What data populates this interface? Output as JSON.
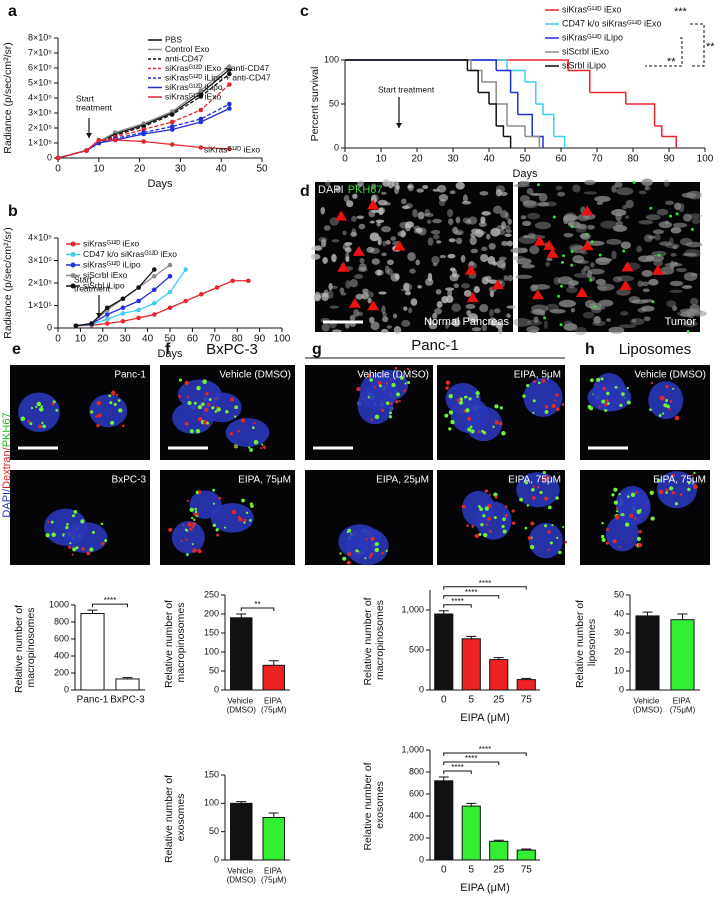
{
  "chart_data": [
    {
      "type": "line",
      "panel": "a",
      "ylabel": "Radiance (p/sec/cm²/sr)",
      "xlabel": "Days",
      "xlim": [
        0,
        50
      ],
      "xticks": [
        0,
        10,
        20,
        30,
        40,
        50
      ],
      "ylim": [
        0,
        800000
      ],
      "yticks": [
        0,
        {
          "value": 100000,
          "label": "1×10⁵"
        },
        {
          "value": 200000,
          "label": "2×10⁵"
        },
        {
          "value": 300000,
          "label": "3×10⁵"
        },
        {
          "value": 400000,
          "label": "4×10⁵"
        },
        {
          "value": 500000,
          "label": "5×10⁵"
        },
        {
          "value": 600000,
          "label": "6×10⁵"
        },
        {
          "value": 700000,
          "label": "7×10⁵"
        },
        {
          "value": 800000,
          "label": "8×10⁵"
        }
      ],
      "annotations": [
        "Start\ntreatment",
        "siKrasᴳ¹²ᴰ iExo"
      ],
      "x": [
        0,
        7,
        10,
        14,
        21,
        28,
        35,
        42
      ],
      "series": [
        {
          "name": "PBS",
          "color": "#111111",
          "dash": false,
          "values": [
            0,
            50000,
            110000,
            160000,
            220000,
            300000,
            430000,
            590000
          ]
        },
        {
          "name": "Control Exo",
          "color": "#8c8c8c",
          "dash": false,
          "values": [
            0,
            50000,
            110000,
            170000,
            230000,
            310000,
            450000,
            610000
          ]
        },
        {
          "name": "anti-CD47",
          "color": "#111111",
          "dash": true,
          "values": [
            0,
            50000,
            100000,
            150000,
            210000,
            290000,
            410000,
            560000
          ]
        },
        {
          "name": "siKrasᴳ¹²ᴰ iExo + anti-CD47",
          "color": "#e8262b",
          "dash": true,
          "values": [
            0,
            50000,
            100000,
            140000,
            190000,
            240000,
            320000,
            490000
          ]
        },
        {
          "name": "siKrasᴳ¹²ᴰ iLipo + anti-CD47",
          "color": "#1f2fd6",
          "dash": true,
          "values": [
            0,
            50000,
            100000,
            130000,
            170000,
            210000,
            260000,
            360000
          ]
        },
        {
          "name": "siKrasᴳ¹²ᴰ iLipo",
          "color": "#1f2fd6",
          "dash": false,
          "values": [
            0,
            50000,
            100000,
            120000,
            160000,
            190000,
            240000,
            330000
          ]
        },
        {
          "name": "siKrasᴳ¹²ᴰ iExo",
          "color": "#e8262b",
          "dash": false,
          "values": [
            0,
            50000,
            120000,
            120000,
            110000,
            90000,
            70000,
            60000
          ]
        }
      ]
    },
    {
      "type": "line",
      "panel": "b",
      "ylabel": "Radiance (p/sec/cm²/sr)",
      "xlabel": "Days",
      "xlim": [
        0,
        100
      ],
      "xticks": [
        0,
        10,
        20,
        30,
        40,
        50,
        60,
        70,
        80,
        90,
        100
      ],
      "ylim": [
        0,
        400000
      ],
      "yticks": [
        0,
        {
          "value": 100000,
          "label": "1×10⁵"
        },
        {
          "value": 200000,
          "label": "2×10⁵"
        },
        {
          "value": 300000,
          "label": "3×10⁵"
        },
        {
          "value": 400000,
          "label": "4×10⁵"
        }
      ],
      "annotations": [
        "Start\ntreatment"
      ],
      "series": [
        {
          "name": "siKrasᴳ¹²ᴰ iExo",
          "color": "#e8262b",
          "dash": false,
          "x": [
            8,
            15,
            22,
            29,
            36,
            43,
            50,
            57,
            64,
            71,
            78,
            85
          ],
          "values": [
            10000,
            12000,
            20000,
            30000,
            45000,
            60000,
            90000,
            120000,
            150000,
            180000,
            210000,
            210000
          ]
        },
        {
          "name": "CD47 k/o siKrasᴳ¹²ᴰ iExo",
          "color": "#3fcdf0",
          "dash": false,
          "x": [
            8,
            15,
            22,
            29,
            36,
            43,
            50,
            57
          ],
          "values": [
            10000,
            15000,
            40000,
            65000,
            80000,
            110000,
            160000,
            260000
          ]
        },
        {
          "name": "siKrasᴳ¹²ᴰ iLipo",
          "color": "#1f2fd6",
          "dash": false,
          "x": [
            8,
            15,
            22,
            29,
            36,
            43,
            50
          ],
          "values": [
            10000,
            18000,
            60000,
            90000,
            120000,
            170000,
            230000
          ]
        },
        {
          "name": "siScrbl iExo",
          "color": "#8c8c8c",
          "dash": false,
          "x": [
            8,
            15,
            22,
            29,
            36,
            43,
            50
          ],
          "values": [
            10000,
            20000,
            80000,
            130000,
            180000,
            230000,
            280000
          ]
        },
        {
          "name": "siSrbl iLipo",
          "color": "#111111",
          "dash": false,
          "x": [
            8,
            15,
            22,
            29,
            36,
            43
          ],
          "values": [
            10000,
            20000,
            90000,
            130000,
            180000,
            260000
          ]
        }
      ]
    },
    {
      "type": "step",
      "panel": "c",
      "ylabel": "Percent survival",
      "xlabel": "Days",
      "xlim": [
        0,
        100
      ],
      "xticks": [
        0,
        10,
        20,
        30,
        40,
        50,
        60,
        70,
        80,
        90,
        100
      ],
      "ylim": [
        0,
        100
      ],
      "yticks": [
        0,
        50,
        100
      ],
      "annotations": [
        "Start treatment"
      ],
      "significance": [
        "***",
        "**",
        "**"
      ],
      "series": [
        {
          "name": "siKrasᴳ¹²ᴰ iExo",
          "color": "#e8262b",
          "x": [
            0,
            62,
            68,
            78,
            86,
            88,
            92
          ],
          "values": [
            100,
            88,
            63,
            50,
            25,
            13,
            0
          ]
        },
        {
          "name": "CD47 k/o siKrasᴳ¹²ᴰ iExo",
          "color": "#3fcdf0",
          "x": [
            0,
            45,
            50,
            53,
            55,
            58,
            61
          ],
          "values": [
            100,
            88,
            75,
            50,
            38,
            13,
            0
          ]
        },
        {
          "name": "siKrasᴳ¹²ᴰ iLipo",
          "color": "#1f2fd6",
          "x": [
            0,
            42,
            46,
            48,
            52,
            55
          ],
          "values": [
            100,
            88,
            63,
            38,
            13,
            0
          ]
        },
        {
          "name": "siScrbl iExo",
          "color": "#8c8c8c",
          "x": [
            0,
            35,
            38,
            42,
            45,
            50,
            54
          ],
          "values": [
            100,
            88,
            75,
            50,
            25,
            13,
            0
          ]
        },
        {
          "name": "siSrbl iLipo",
          "color": "#111111",
          "x": [
            0,
            34,
            37,
            40,
            42,
            44,
            46
          ],
          "values": [
            100,
            88,
            63,
            50,
            25,
            13,
            0
          ]
        }
      ]
    },
    {
      "type": "bar",
      "ylabel": "Relative number of\nmacropinosomes",
      "categories": [
        "Panc-1",
        "BxPC-3"
      ],
      "values": [
        900,
        130
      ],
      "errors": [
        40,
        15
      ],
      "colors": [
        "#ffffff",
        "#ffffff"
      ],
      "ylim": [
        0,
        1000
      ],
      "yticks": [
        0,
        200,
        400,
        600,
        800,
        1000
      ],
      "annotations": [
        "****"
      ]
    },
    {
      "type": "bar",
      "ylabel": "Relative number of\nmacropinosomes",
      "categories": [
        "Vehicle\n(DMSO)",
        "EIPA\n(75μM)"
      ],
      "values": [
        190,
        65
      ],
      "errors": [
        10,
        12
      ],
      "colors": [
        "#111111",
        "#ee2222"
      ],
      "ylim": [
        0,
        250
      ],
      "yticks": [
        0,
        50,
        100,
        150,
        200,
        250
      ],
      "annotations": [
        "**"
      ]
    },
    {
      "type": "bar",
      "ylabel": "Relative number of\nexosomes",
      "categories": [
        "Vehicle\n(DMSO)",
        "EIPA\n(75μM)"
      ],
      "values": [
        100,
        75
      ],
      "errors": [
        3,
        8
      ],
      "colors": [
        "#111111",
        "#33ee33"
      ],
      "ylim": [
        0,
        150
      ],
      "yticks": [
        0,
        50,
        100,
        150
      ]
    },
    {
      "type": "bar",
      "ylabel": "Relative number of\nmacropinosomes",
      "xlabel": "EIPA (μM)",
      "categories": [
        "0",
        "5",
        "25",
        "75"
      ],
      "values": [
        950,
        640,
        380,
        130
      ],
      "errors": [
        40,
        30,
        25,
        15
      ],
      "colors": [
        "#111111",
        "#ee2222",
        "#ee2222",
        "#ee2222"
      ],
      "ylim": [
        0,
        1250
      ],
      "yticks": [
        0,
        500,
        {
          "value": 1000,
          "label": "1,000"
        }
      ],
      "annotations": [
        "****",
        "****",
        "****"
      ]
    },
    {
      "type": "bar",
      "ylabel": "Relative number of\nexosomes",
      "xlabel": "EIPA (μM)",
      "categories": [
        "0",
        "5",
        "25",
        "75"
      ],
      "values": [
        720,
        490,
        170,
        90
      ],
      "errors": [
        35,
        25,
        10,
        10
      ],
      "colors": [
        "#111111",
        "#33ee33",
        "#33ee33",
        "#33ee33"
      ],
      "ylim": [
        0,
        1000
      ],
      "yticks": [
        0,
        200,
        400,
        600,
        800,
        {
          "value": 1000,
          "label": "1,000"
        }
      ],
      "annotations": [
        "****",
        "****",
        "****"
      ]
    },
    {
      "type": "bar",
      "ylabel": "Relative number of\nliposomes",
      "categories": [
        "Vehicle\n(DMSO)",
        "EIPA\n(75μM)"
      ],
      "values": [
        39,
        37
      ],
      "errors": [
        2,
        3
      ],
      "colors": [
        "#111111",
        "#33ee33"
      ],
      "ylim": [
        0,
        50
      ],
      "yticks": [
        0,
        10,
        20,
        30,
        40,
        50
      ]
    }
  ],
  "images": [
    {
      "panel": "d",
      "channels": [
        "DAPI",
        "PKH67"
      ],
      "tiles": [
        "Normal Pancreas",
        "Tumor"
      ]
    },
    {
      "panel": "e",
      "side_label": [
        "DAPI/",
        "Dextran/",
        "PKH67"
      ],
      "tiles": [
        "Panc-1",
        "BxPC-3"
      ]
    },
    {
      "panel": "f",
      "title": "BxPC-3",
      "tiles": [
        "Vehicle (DMSO)",
        "EIPA, 75μM"
      ]
    },
    {
      "panel": "g",
      "title": "Panc-1",
      "tiles": [
        "Vehicle (DMSO)",
        "EIPA, 5μM",
        "EIPA, 25μM",
        "EIPA, 75μM"
      ]
    },
    {
      "panel": "h",
      "title": "Liposomes",
      "tiles": [
        "Vehicle (DMSO)",
        "EIPA, 75μM"
      ]
    }
  ]
}
